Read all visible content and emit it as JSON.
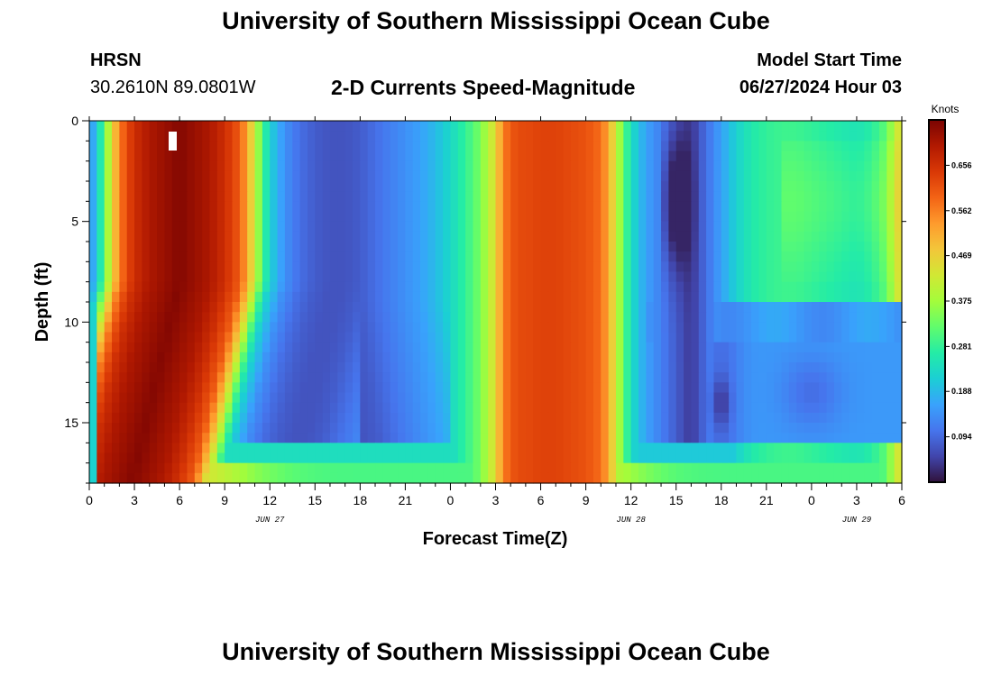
{
  "page": {
    "title": "University of Southern Mississippi Ocean Cube",
    "station": "HRSN",
    "coords": "30.2610N  89.0801W",
    "subtitle": "2-D Currents Speed-Magnitude",
    "model_start_label": "Model Start Time",
    "model_start_value": "06/27/2024 Hour 03",
    "footer_title": "University of Southern Mississippi Ocean Cube"
  },
  "colors": {
    "background": "#ffffff",
    "axis": "#000000",
    "colormap": [
      "#30123b",
      "#4145ab",
      "#4675ed",
      "#39a2fc",
      "#1bcfd4",
      "#24eca6",
      "#61fc6c",
      "#a4fc3b",
      "#d1e834",
      "#f3c63a",
      "#fe9b2d",
      "#f36315",
      "#d93806",
      "#b11901",
      "#7a0402"
    ]
  },
  "chart_data": {
    "type": "heatmap",
    "title": "2-D Currents Speed-Magnitude",
    "xlabel": "Forecast Time(Z)",
    "ylabel": "Depth (ft)",
    "x_hours_from_start": [
      0,
      54
    ],
    "x_tick_labels": [
      "0",
      "3",
      "6",
      "9",
      "12",
      "15",
      "18",
      "21",
      "0",
      "3",
      "6",
      "9",
      "12",
      "15",
      "18",
      "21",
      "0",
      "3",
      "6"
    ],
    "date_labels": [
      {
        "label": "JUN 27",
        "hour": 12
      },
      {
        "label": "JUN 28",
        "hour": 36
      },
      {
        "label": "JUN 29",
        "hour": 51
      }
    ],
    "y_range_ft": [
      0,
      18
    ],
    "y_ticks": [
      0,
      5,
      10,
      15
    ],
    "y_tick_labels": [
      "0",
      "5",
      "10",
      "15"
    ],
    "colorbar": {
      "title": "Knots",
      "ticks": [
        "0.656",
        "0.562",
        "0.469",
        "0.375",
        "0.281",
        "0.188",
        "0.094"
      ],
      "tick_values": [
        0.656,
        0.562,
        0.469,
        0.375,
        0.281,
        0.188,
        0.094
      ],
      "range": [
        0.0,
        0.75
      ]
    },
    "time_profile_hours": [
      0,
      0.5,
      1,
      1.5,
      2,
      2.5,
      3,
      4,
      5,
      6,
      7,
      8,
      9,
      10,
      10.5,
      11,
      11.5,
      12,
      13,
      14,
      15,
      16,
      17,
      18,
      19,
      20,
      21,
      22,
      23,
      24,
      25,
      26,
      27,
      27.5,
      28,
      28.5,
      29,
      30,
      31,
      32,
      33,
      34,
      34.5,
      35,
      35.5,
      36,
      37,
      38,
      39,
      40,
      41,
      42,
      43,
      44,
      45,
      46,
      47,
      48,
      49,
      50,
      51,
      52,
      53,
      53.5,
      54
    ],
    "surface_speed_knots": [
      0.14,
      0.2,
      0.32,
      0.45,
      0.56,
      0.62,
      0.66,
      0.7,
      0.72,
      0.74,
      0.72,
      0.7,
      0.66,
      0.6,
      0.52,
      0.42,
      0.3,
      0.22,
      0.14,
      0.1,
      0.08,
      0.07,
      0.07,
      0.08,
      0.1,
      0.12,
      0.14,
      0.16,
      0.19,
      0.23,
      0.28,
      0.34,
      0.45,
      0.56,
      0.6,
      0.62,
      0.62,
      0.63,
      0.63,
      0.62,
      0.61,
      0.58,
      0.52,
      0.42,
      0.32,
      0.24,
      0.16,
      0.12,
      0.08,
      0.04,
      0.1,
      0.16,
      0.22,
      0.26,
      0.28,
      0.29,
      0.29,
      0.28,
      0.27,
      0.26,
      0.25,
      0.27,
      0.32,
      0.4,
      0.46
    ]
  }
}
